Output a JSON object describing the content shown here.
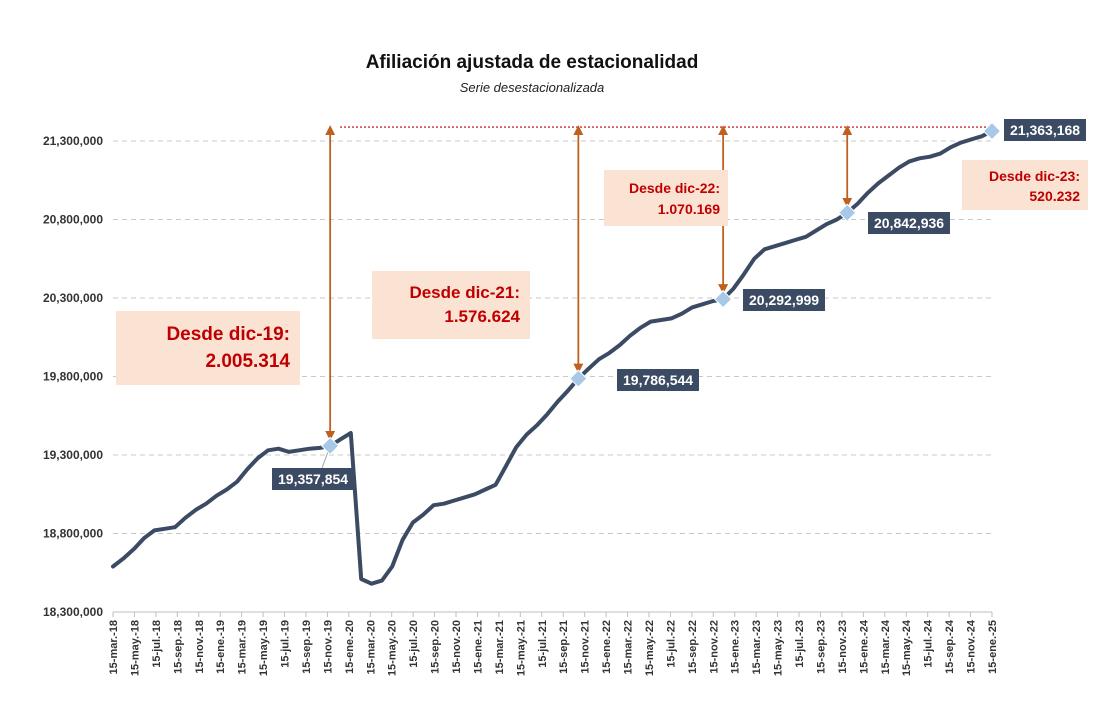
{
  "chart_data": {
    "type": "line",
    "title": "Afiliación ajustada de estacionalidad",
    "subtitle": "Serie desestacionalizada",
    "xlabel": "",
    "ylabel": "",
    "ylim": [
      18300000,
      21500000
    ],
    "y_ticks": [
      "18,300,000",
      "18,800,000",
      "19,300,000",
      "19,800,000",
      "20,300,000",
      "20,800,000",
      "21,300,000"
    ],
    "y_tick_values": [
      18300000,
      18800000,
      19300000,
      19800000,
      20300000,
      20800000,
      21300000
    ],
    "grid": true,
    "x_tick_labels": [
      "15-mar.-18",
      "15-may.-18",
      "15-jul.-18",
      "15-sep.-18",
      "15-nov.-18",
      "15-ene.-19",
      "15-mar.-19",
      "15-may.-19",
      "15-jul.-19",
      "15-sep.-19",
      "15-nov.-19",
      "15-ene.-20",
      "15-mar.-20",
      "15-may.-20",
      "15-jul.-20",
      "15-sep.-20",
      "15-nov.-20",
      "15-ene.-21",
      "15-mar.-21",
      "15-may.-21",
      "15-jul.-21",
      "15-sep.-21",
      "15-nov.-21",
      "15-ene.-22",
      "15-mar.-22",
      "15-may.-22",
      "15-jul.-22",
      "15-sep.-22",
      "15-nov.-22",
      "15-ene.-23",
      "15-mar.-23",
      "15-may.-23",
      "15-jul.-23",
      "15-sep.-23",
      "15-nov.-23",
      "15-ene.-24",
      "15-mar.-24",
      "15-may.-24",
      "15-jul.-24",
      "15-sep.-24",
      "15-nov.-24",
      "15-ene.-25"
    ],
    "series": [
      {
        "color": "#3c4b64",
        "values": [
          18590000,
          18640000,
          18700000,
          18770000,
          18820000,
          18830000,
          18840000,
          18900000,
          18950000,
          18990000,
          19040000,
          19080000,
          19130000,
          19210000,
          19280000,
          19330000,
          19340000,
          19320000,
          19330000,
          19340000,
          19345000,
          19357854,
          19400000,
          19440000,
          18510000,
          18480000,
          18500000,
          18590000,
          18760000,
          18870000,
          18920000,
          18980000,
          18990000,
          19010000,
          19030000,
          19050000,
          19080000,
          19110000,
          19230000,
          19350000,
          19430000,
          19490000,
          19560000,
          19640000,
          19710000,
          19786544,
          19850000,
          19910000,
          19950000,
          20000000,
          20060000,
          20110000,
          20150000,
          20160000,
          20170000,
          20200000,
          20240000,
          20260000,
          20280000,
          20292999,
          20360000,
          20450000,
          20550000,
          20610000,
          20630000,
          20650000,
          20670000,
          20690000,
          20730000,
          20770000,
          20800000,
          20842936,
          20900000,
          20970000,
          21030000,
          21080000,
          21130000,
          21170000,
          21190000,
          21200000,
          21220000,
          21260000,
          21290000,
          21310000,
          21330000,
          21363168
        ]
      }
    ],
    "markers": [
      {
        "index": 21,
        "value": 19357854,
        "label": "19,357,854"
      },
      {
        "index": 45,
        "value": 19786544,
        "label": "19,786,544"
      },
      {
        "index": 59,
        "value": 20292999,
        "label": "20,292,999"
      },
      {
        "index": 71,
        "value": 20842936,
        "label": "20,842,936"
      },
      {
        "index": 85,
        "value": 21363168,
        "label": "21,363,168"
      }
    ],
    "reference_line": {
      "value": 21363168,
      "color": "#c00000",
      "style": "dotted"
    },
    "annotations": [
      {
        "line1": "Desde dic-19:",
        "line2": "2.005.314",
        "from_marker": 0
      },
      {
        "line1": "Desde dic-21:",
        "line2": "1.576.624",
        "from_marker": 1
      },
      {
        "line1": "Desde dic-22:",
        "line2": "1.070.169",
        "from_marker": 2
      },
      {
        "line1": "Desde dic-23:",
        "line2": "520.232",
        "from_marker": 3
      }
    ],
    "arrow_color": "#c0601e",
    "marker_color": "#a8c8e8"
  }
}
